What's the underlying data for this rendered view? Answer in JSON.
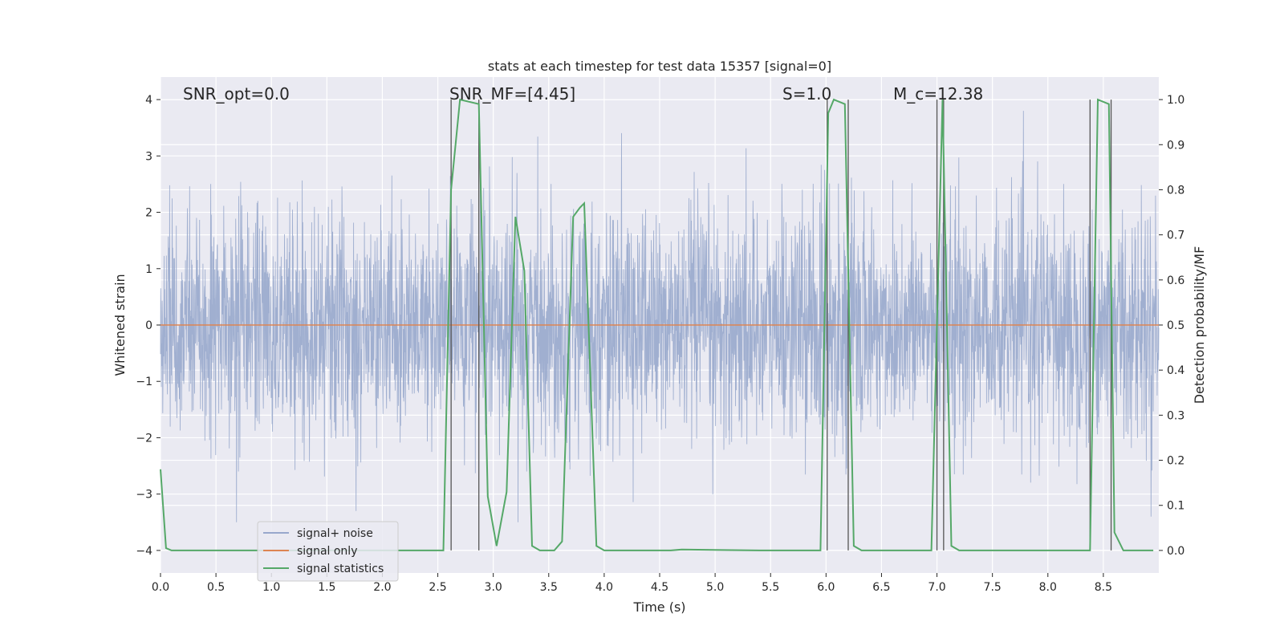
{
  "chart_data": {
    "type": "line",
    "title": "stats at each timestep for test data 15357 [signal=0]",
    "xlabel": "Time (s)",
    "ylabel_left": "Whitened strain",
    "ylabel_right": "Detection probability/MF",
    "xlim": [
      0.0,
      9.0
    ],
    "ylim_left": [
      -4.4,
      4.4
    ],
    "ylim_right": [
      -0.05,
      1.05
    ],
    "xticks": [
      "0.0",
      "0.5",
      "1.0",
      "1.5",
      "2.0",
      "2.5",
      "3.0",
      "3.5",
      "4.0",
      "4.5",
      "5.0",
      "5.5",
      "6.0",
      "6.5",
      "7.0",
      "7.5",
      "8.0",
      "8.5"
    ],
    "yticks_left": [
      "−4",
      "−3",
      "−2",
      "−1",
      "0",
      "1",
      "2",
      "3",
      "4"
    ],
    "yticks_right": [
      "0.0",
      "0.1",
      "0.2",
      "0.3",
      "0.4",
      "0.5",
      "0.6",
      "0.7",
      "0.8",
      "0.9",
      "1.0"
    ],
    "grid": true,
    "legend_position": "lower-left",
    "annotations": {
      "snr_opt": "SNR_opt=0.0",
      "snr_mf": "SNR_MF=[4.45]",
      "s": "S=1.0",
      "mc": "M_c=12.38"
    },
    "colors": {
      "background": "#eaeaf2",
      "noise": "#98a8cc",
      "signal": "#dd8452",
      "statistics": "#55a868",
      "markers": "#555555"
    },
    "series": [
      {
        "name": "signal+ noise",
        "description_type": "noise",
        "envelope_typical": [
          -1.6,
          2.2
        ],
        "spike_extremes": [
          -3.5,
          3.8
        ]
      },
      {
        "name": "signal only",
        "x": [
          0.0,
          9.0
        ],
        "y": [
          0.0,
          0.0
        ]
      },
      {
        "name": "signal statistics",
        "axis": "right",
        "x": [
          0.0,
          0.05,
          0.1,
          2.55,
          2.62,
          2.7,
          2.87,
          2.95,
          3.03,
          3.12,
          3.2,
          3.28,
          3.35,
          3.42,
          3.55,
          3.62,
          3.72,
          3.78,
          3.82,
          3.93,
          4.0,
          4.6,
          4.7,
          5.4,
          5.95,
          6.02,
          6.07,
          6.17,
          6.25,
          6.32,
          6.4,
          6.95,
          7.05,
          7.13,
          7.2,
          8.38,
          8.45,
          8.55,
          8.6,
          8.68,
          8.95
        ],
        "y": [
          0.18,
          0.005,
          0.0,
          0.0,
          0.8,
          1.0,
          0.99,
          0.12,
          0.01,
          0.13,
          0.74,
          0.62,
          0.01,
          0.0,
          0.0,
          0.02,
          0.74,
          0.76,
          0.77,
          0.01,
          0.0,
          0.0,
          0.002,
          0.0,
          0.0,
          0.97,
          1.0,
          0.99,
          0.01,
          0.0,
          0.0,
          0.0,
          1.0,
          0.01,
          0.0,
          0.0,
          1.0,
          0.99,
          0.04,
          0.0,
          0.0
        ]
      }
    ],
    "vertical_lines_x": [
      2.62,
      2.87,
      6.01,
      6.2,
      7.0,
      7.06,
      8.38,
      8.57
    ]
  }
}
